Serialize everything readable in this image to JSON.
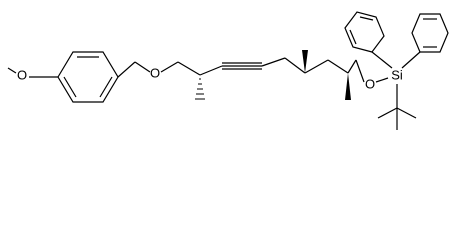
{
  "atoms": [
    "O",
    "O",
    "O",
    "Si"
  ]
}
